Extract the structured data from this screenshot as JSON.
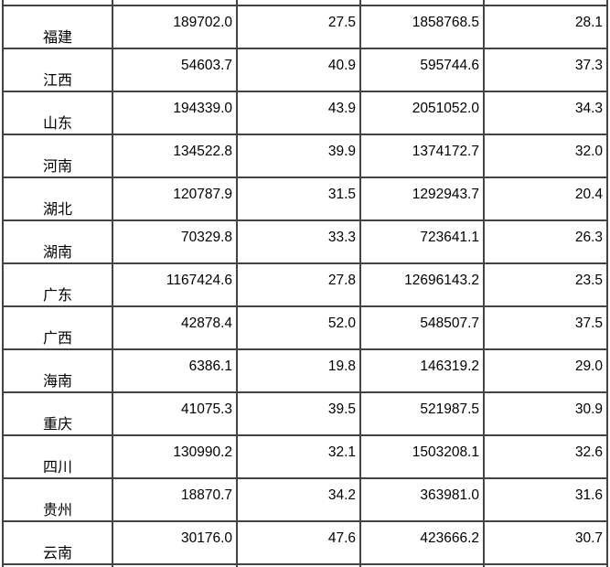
{
  "table": {
    "border_color": "#434343",
    "text_color": "#000000",
    "columns": [
      "province",
      "value-1",
      "percent-1",
      "value-2",
      "percent-2"
    ],
    "rows": [
      {
        "province": "福建",
        "value1": "189702.0",
        "percent1": "27.5",
        "value2": "1858768.5",
        "percent2": "28.1"
      },
      {
        "province": "江西",
        "value1": "54603.7",
        "percent1": "40.9",
        "value2": "595744.6",
        "percent2": "37.3"
      },
      {
        "province": "山东",
        "value1": "194339.0",
        "percent1": "43.9",
        "value2": "2051052.0",
        "percent2": "34.3"
      },
      {
        "province": "河南",
        "value1": "134522.8",
        "percent1": "39.9",
        "value2": "1374172.7",
        "percent2": "32.0"
      },
      {
        "province": "湖北",
        "value1": "120787.9",
        "percent1": "31.5",
        "value2": "1292943.7",
        "percent2": "20.4"
      },
      {
        "province": "湖南",
        "value1": "70329.8",
        "percent1": "33.3",
        "value2": "723641.1",
        "percent2": "26.3"
      },
      {
        "province": "广东",
        "value1": "1167424.6",
        "percent1": "27.8",
        "value2": "12696143.2",
        "percent2": "23.5"
      },
      {
        "province": "广西",
        "value1": "42878.4",
        "percent1": "52.0",
        "value2": "548507.7",
        "percent2": "37.5"
      },
      {
        "province": "海南",
        "value1": "6386.1",
        "percent1": "19.8",
        "value2": "146319.2",
        "percent2": "29.0"
      },
      {
        "province": "重庆",
        "value1": "41075.3",
        "percent1": "39.5",
        "value2": "521987.5",
        "percent2": "30.9"
      },
      {
        "province": "四川",
        "value1": "130990.2",
        "percent1": "32.1",
        "value2": "1503208.1",
        "percent2": "32.6"
      },
      {
        "province": "贵州",
        "value1": "18870.7",
        "percent1": "34.2",
        "value2": "363981.0",
        "percent2": "31.6"
      },
      {
        "province": "云南",
        "value1": "30176.0",
        "percent1": "47.6",
        "value2": "423666.2",
        "percent2": "30.7"
      }
    ]
  }
}
